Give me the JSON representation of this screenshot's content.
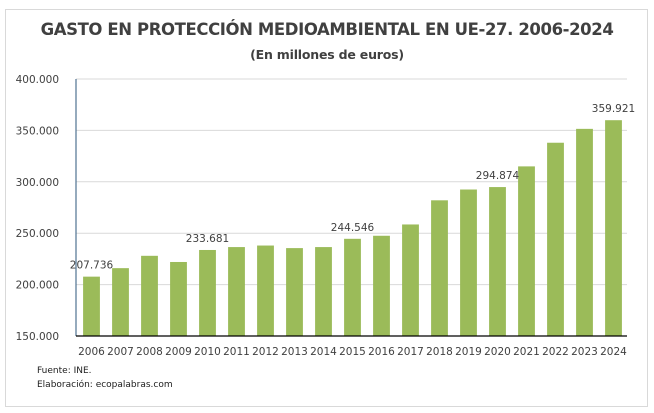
{
  "chart_data": {
    "type": "bar",
    "title": "GASTO EN PROTECCIÓN MEDIOAMBIENTAL EN UE-27. 2006-2024",
    "subtitle": "(En millones de euros)",
    "xlabel": "",
    "ylabel": "",
    "ylim": [
      150000,
      400000
    ],
    "y_ticks": [
      150000,
      200000,
      250000,
      300000,
      350000,
      400000
    ],
    "y_tick_labels": [
      "150.000",
      "200.000",
      "250.000",
      "300.000",
      "350.000",
      "400.000"
    ],
    "grid": true,
    "categories": [
      "2006",
      "2007",
      "2008",
      "2009",
      "2010",
      "2011",
      "2012",
      "2013",
      "2014",
      "2015",
      "2016",
      "2017",
      "2018",
      "2019",
      "2020",
      "2021",
      "2022",
      "2023",
      "2024"
    ],
    "values": [
      207736,
      216000,
      228000,
      222000,
      233681,
      236500,
      238000,
      235500,
      236500,
      244546,
      247500,
      258500,
      282000,
      292500,
      294874,
      315000,
      338000,
      351500,
      359921
    ],
    "data_labels": [
      {
        "category": "2006",
        "text": "207.736"
      },
      {
        "category": "2010",
        "text": "233.681"
      },
      {
        "category": "2015",
        "text": "244.546"
      },
      {
        "category": "2020",
        "text": "294.874"
      },
      {
        "category": "2024",
        "text": "359.921"
      }
    ],
    "bar_color": "#9bbb59",
    "legend": "none"
  },
  "footer": {
    "source": "Fuente: INE.",
    "credit": "Elaboración: ecopalabras.com"
  }
}
